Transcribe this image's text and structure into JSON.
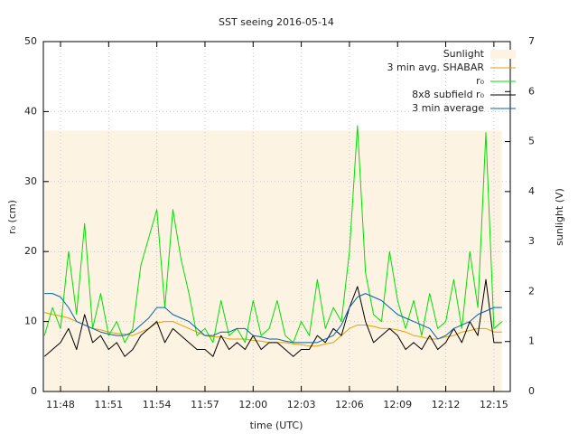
{
  "chart_data": {
    "type": "line",
    "title": "SST seeing 2016-05-14",
    "xlabel": "time (UTC)",
    "ylabel": "r₀ (cm)",
    "y2label": "sunlight (V)",
    "x": [
      707,
      707.5,
      708,
      708.5,
      709,
      709.5,
      710,
      710.5,
      711,
      711.5,
      712,
      712.5,
      713,
      713.5,
      714,
      714.5,
      715,
      715.5,
      716,
      716.5,
      717,
      717.5,
      718,
      718.5,
      719,
      719.5,
      720,
      720.5,
      721,
      721.5,
      722,
      722.5,
      723,
      723.5,
      724,
      724.5,
      725,
      725.5,
      726,
      726.5,
      727,
      727.5,
      728,
      728.5,
      729,
      729.5,
      730,
      730.5,
      731,
      731.5,
      732,
      732.5,
      733,
      733.5,
      734,
      734.5,
      735,
      735.5
    ],
    "xlim": [
      706.93,
      736.02
    ],
    "xticks": [
      {
        "value": 708,
        "label": "11:48"
      },
      {
        "value": 711,
        "label": "11:51"
      },
      {
        "value": 714,
        "label": "11:54"
      },
      {
        "value": 717,
        "label": "11:57"
      },
      {
        "value": 720,
        "label": "12:00"
      },
      {
        "value": 723,
        "label": "12:03"
      },
      {
        "value": 726,
        "label": "12:06"
      },
      {
        "value": 729,
        "label": "12:09"
      },
      {
        "value": 732,
        "label": "12:12"
      },
      {
        "value": 735,
        "label": "12:15"
      }
    ],
    "ylim": [
      0,
      50
    ],
    "yticks": [
      0,
      10,
      20,
      30,
      40,
      50
    ],
    "y2lim": [
      0,
      7
    ],
    "y2ticks": [
      0,
      1,
      2,
      3,
      4,
      5,
      6,
      7
    ],
    "grid": true,
    "legend": "upper right",
    "series": [
      {
        "name": "Sunlight",
        "color": "#fdf3e2",
        "axis": "y2",
        "style": "area",
        "values": [
          5.22,
          5.22,
          5.22,
          5.22,
          5.22,
          5.22,
          5.22,
          5.22,
          5.22,
          5.22,
          5.22,
          5.22,
          5.22,
          5.22,
          5.22,
          5.22,
          5.22,
          5.22,
          5.22,
          5.22,
          5.22,
          5.22,
          5.22,
          5.22,
          5.22,
          5.22,
          5.22,
          5.22,
          5.22,
          5.22,
          5.22,
          5.22,
          5.22,
          5.22,
          5.22,
          5.22,
          5.22,
          5.22,
          5.22,
          5.22,
          5.22,
          5.22,
          5.22,
          5.22,
          5.22,
          5.22,
          5.22,
          5.22,
          5.22,
          5.22,
          5.22,
          5.22,
          5.22,
          5.22,
          5.22,
          5.22,
          5.22,
          5.22
        ]
      },
      {
        "name": "3 min avg. SHABAR",
        "color": "#e69f00",
        "values": [
          11.3,
          11,
          10.8,
          10.5,
          10,
          9.5,
          9,
          8.8,
          8.5,
          8.3,
          8.2,
          8,
          8.5,
          9,
          9.8,
          10,
          10,
          9.5,
          9,
          8.5,
          8,
          7.8,
          7.8,
          7.5,
          7.5,
          7.5,
          7.3,
          7.2,
          7,
          7,
          7,
          6.8,
          6.7,
          6.5,
          6.5,
          6.8,
          7,
          8,
          9,
          9.5,
          9.5,
          9.3,
          9,
          9,
          8.8,
          8.5,
          8,
          7.8,
          7.5,
          7.5,
          7.8,
          8,
          8.5,
          8.7,
          9,
          9,
          8.5,
          8.5
        ]
      },
      {
        "name": "r₀",
        "color": "#00e000",
        "values": [
          8,
          12,
          9,
          20,
          11,
          24,
          9,
          14,
          8,
          10,
          7,
          9,
          18,
          22,
          26,
          12,
          26,
          19,
          14,
          8,
          9,
          7,
          13,
          8,
          9,
          7,
          13,
          8,
          9,
          13,
          8,
          7,
          10,
          8,
          16,
          9,
          12,
          10,
          20,
          38,
          17,
          11,
          10,
          20,
          13,
          9,
          13,
          8,
          14,
          9,
          10,
          16,
          9,
          20,
          12,
          37,
          9,
          10
        ]
      },
      {
        "name": "8x8 subfield r₀",
        "color": "#000000",
        "values": [
          5,
          6,
          7,
          9,
          6,
          11,
          7,
          8,
          6,
          7,
          5,
          6,
          8,
          9,
          10,
          7,
          9,
          8,
          7,
          6,
          6,
          5,
          8,
          6,
          7,
          6,
          8,
          6,
          7,
          7,
          6,
          5,
          6,
          6,
          8,
          7,
          9,
          8,
          12,
          15,
          10,
          7,
          8,
          9,
          8,
          6,
          7,
          6,
          8,
          6,
          7,
          9,
          7,
          10,
          8,
          16,
          7,
          7
        ]
      },
      {
        "name": "3 min average",
        "color": "#0060ad",
        "values": [
          14,
          14,
          13.5,
          12,
          10,
          9.5,
          9,
          8.5,
          8.2,
          8,
          8,
          8.5,
          9.5,
          10.5,
          12,
          12,
          11,
          10.5,
          10,
          9,
          8,
          8,
          8.5,
          8.5,
          9,
          9,
          8,
          7.8,
          7.5,
          7.5,
          7.2,
          7,
          7,
          7,
          7,
          7.5,
          8,
          9.5,
          12,
          13.5,
          14,
          13.5,
          13,
          12,
          11,
          10.5,
          10,
          9.5,
          9,
          7.5,
          8,
          9,
          9.5,
          10,
          11,
          11.5,
          12,
          12
        ]
      }
    ]
  }
}
